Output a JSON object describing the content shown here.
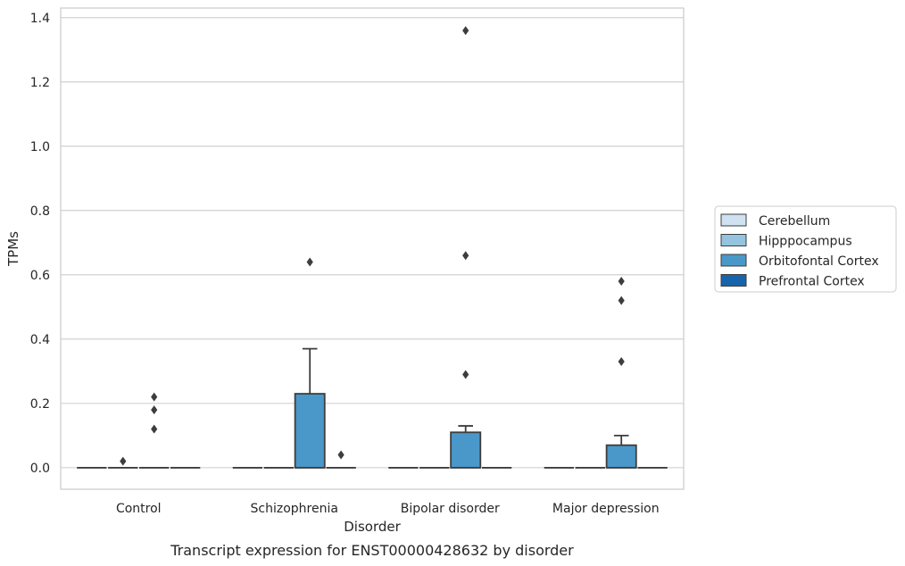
{
  "chart_data": {
    "type": "box",
    "title": "",
    "caption": "Transcript expression for ENST00000428632 by disorder",
    "xlabel": "Disorder",
    "ylabel": "TPMs",
    "categories": [
      "Control",
      "Schizophrenia",
      "Bipolar disorder",
      "Major depression"
    ],
    "ylim": [
      -0.067,
      1.43
    ],
    "yticks": [
      0.0,
      0.2,
      0.4,
      0.6,
      0.8,
      1.0,
      1.2,
      1.4
    ],
    "ytick_labels": [
      "0.0",
      "0.2",
      "0.4",
      "0.6",
      "0.8",
      "1.0",
      "1.2",
      "1.4"
    ],
    "grid": true,
    "legend_position": "right",
    "series": [
      {
        "name": "Cerebellum",
        "color": "#d0e1f2",
        "boxes": [
          {
            "whislo": 0,
            "q1": 0,
            "median": 0,
            "q3": 0,
            "whishi": 0,
            "fliers": []
          },
          {
            "whislo": 0,
            "q1": 0,
            "median": 0,
            "q3": 0,
            "whishi": 0,
            "fliers": []
          },
          {
            "whislo": 0,
            "q1": 0,
            "median": 0,
            "q3": 0,
            "whishi": 0,
            "fliers": []
          },
          {
            "whislo": 0,
            "q1": 0,
            "median": 0,
            "q3": 0,
            "whishi": 0,
            "fliers": []
          }
        ]
      },
      {
        "name": "Hipppocampus",
        "color": "#94c4df",
        "boxes": [
          {
            "whislo": 0,
            "q1": 0,
            "median": 0,
            "q3": 0,
            "whishi": 0,
            "fliers": [
              0.02
            ]
          },
          {
            "whislo": 0,
            "q1": 0,
            "median": 0,
            "q3": 0,
            "whishi": 0,
            "fliers": []
          },
          {
            "whislo": 0,
            "q1": 0,
            "median": 0,
            "q3": 0,
            "whishi": 0,
            "fliers": []
          },
          {
            "whislo": 0,
            "q1": 0,
            "median": 0,
            "q3": 0,
            "whishi": 0,
            "fliers": []
          }
        ]
      },
      {
        "name": "Orbitofontal Cortex",
        "color": "#4a98c9",
        "boxes": [
          {
            "whislo": 0,
            "q1": 0,
            "median": 0,
            "q3": 0,
            "whishi": 0,
            "fliers": [
              0.12,
              0.18,
              0.22
            ]
          },
          {
            "whislo": 0,
            "q1": 0,
            "median": 0,
            "q3": 0.23,
            "whishi": 0.37,
            "fliers": [
              0.64
            ]
          },
          {
            "whislo": 0,
            "q1": 0,
            "median": 0,
            "q3": 0.11,
            "whishi": 0.13,
            "fliers": [
              0.29,
              0.66,
              1.36
            ]
          },
          {
            "whislo": 0,
            "q1": 0,
            "median": 0,
            "q3": 0.07,
            "whishi": 0.1,
            "fliers": [
              0.33,
              0.52,
              0.58
            ]
          }
        ]
      },
      {
        "name": "Prefrontal Cortex",
        "color": "#1764ab",
        "boxes": [
          {
            "whislo": 0,
            "q1": 0,
            "median": 0,
            "q3": 0,
            "whishi": 0,
            "fliers": []
          },
          {
            "whislo": 0,
            "q1": 0,
            "median": 0,
            "q3": 0,
            "whishi": 0,
            "fliers": [
              0.04
            ]
          },
          {
            "whislo": 0,
            "q1": 0,
            "median": 0,
            "q3": 0,
            "whishi": 0,
            "fliers": []
          },
          {
            "whislo": 0,
            "q1": 0,
            "median": 0,
            "q3": 0,
            "whishi": 0,
            "fliers": []
          }
        ]
      }
    ]
  }
}
